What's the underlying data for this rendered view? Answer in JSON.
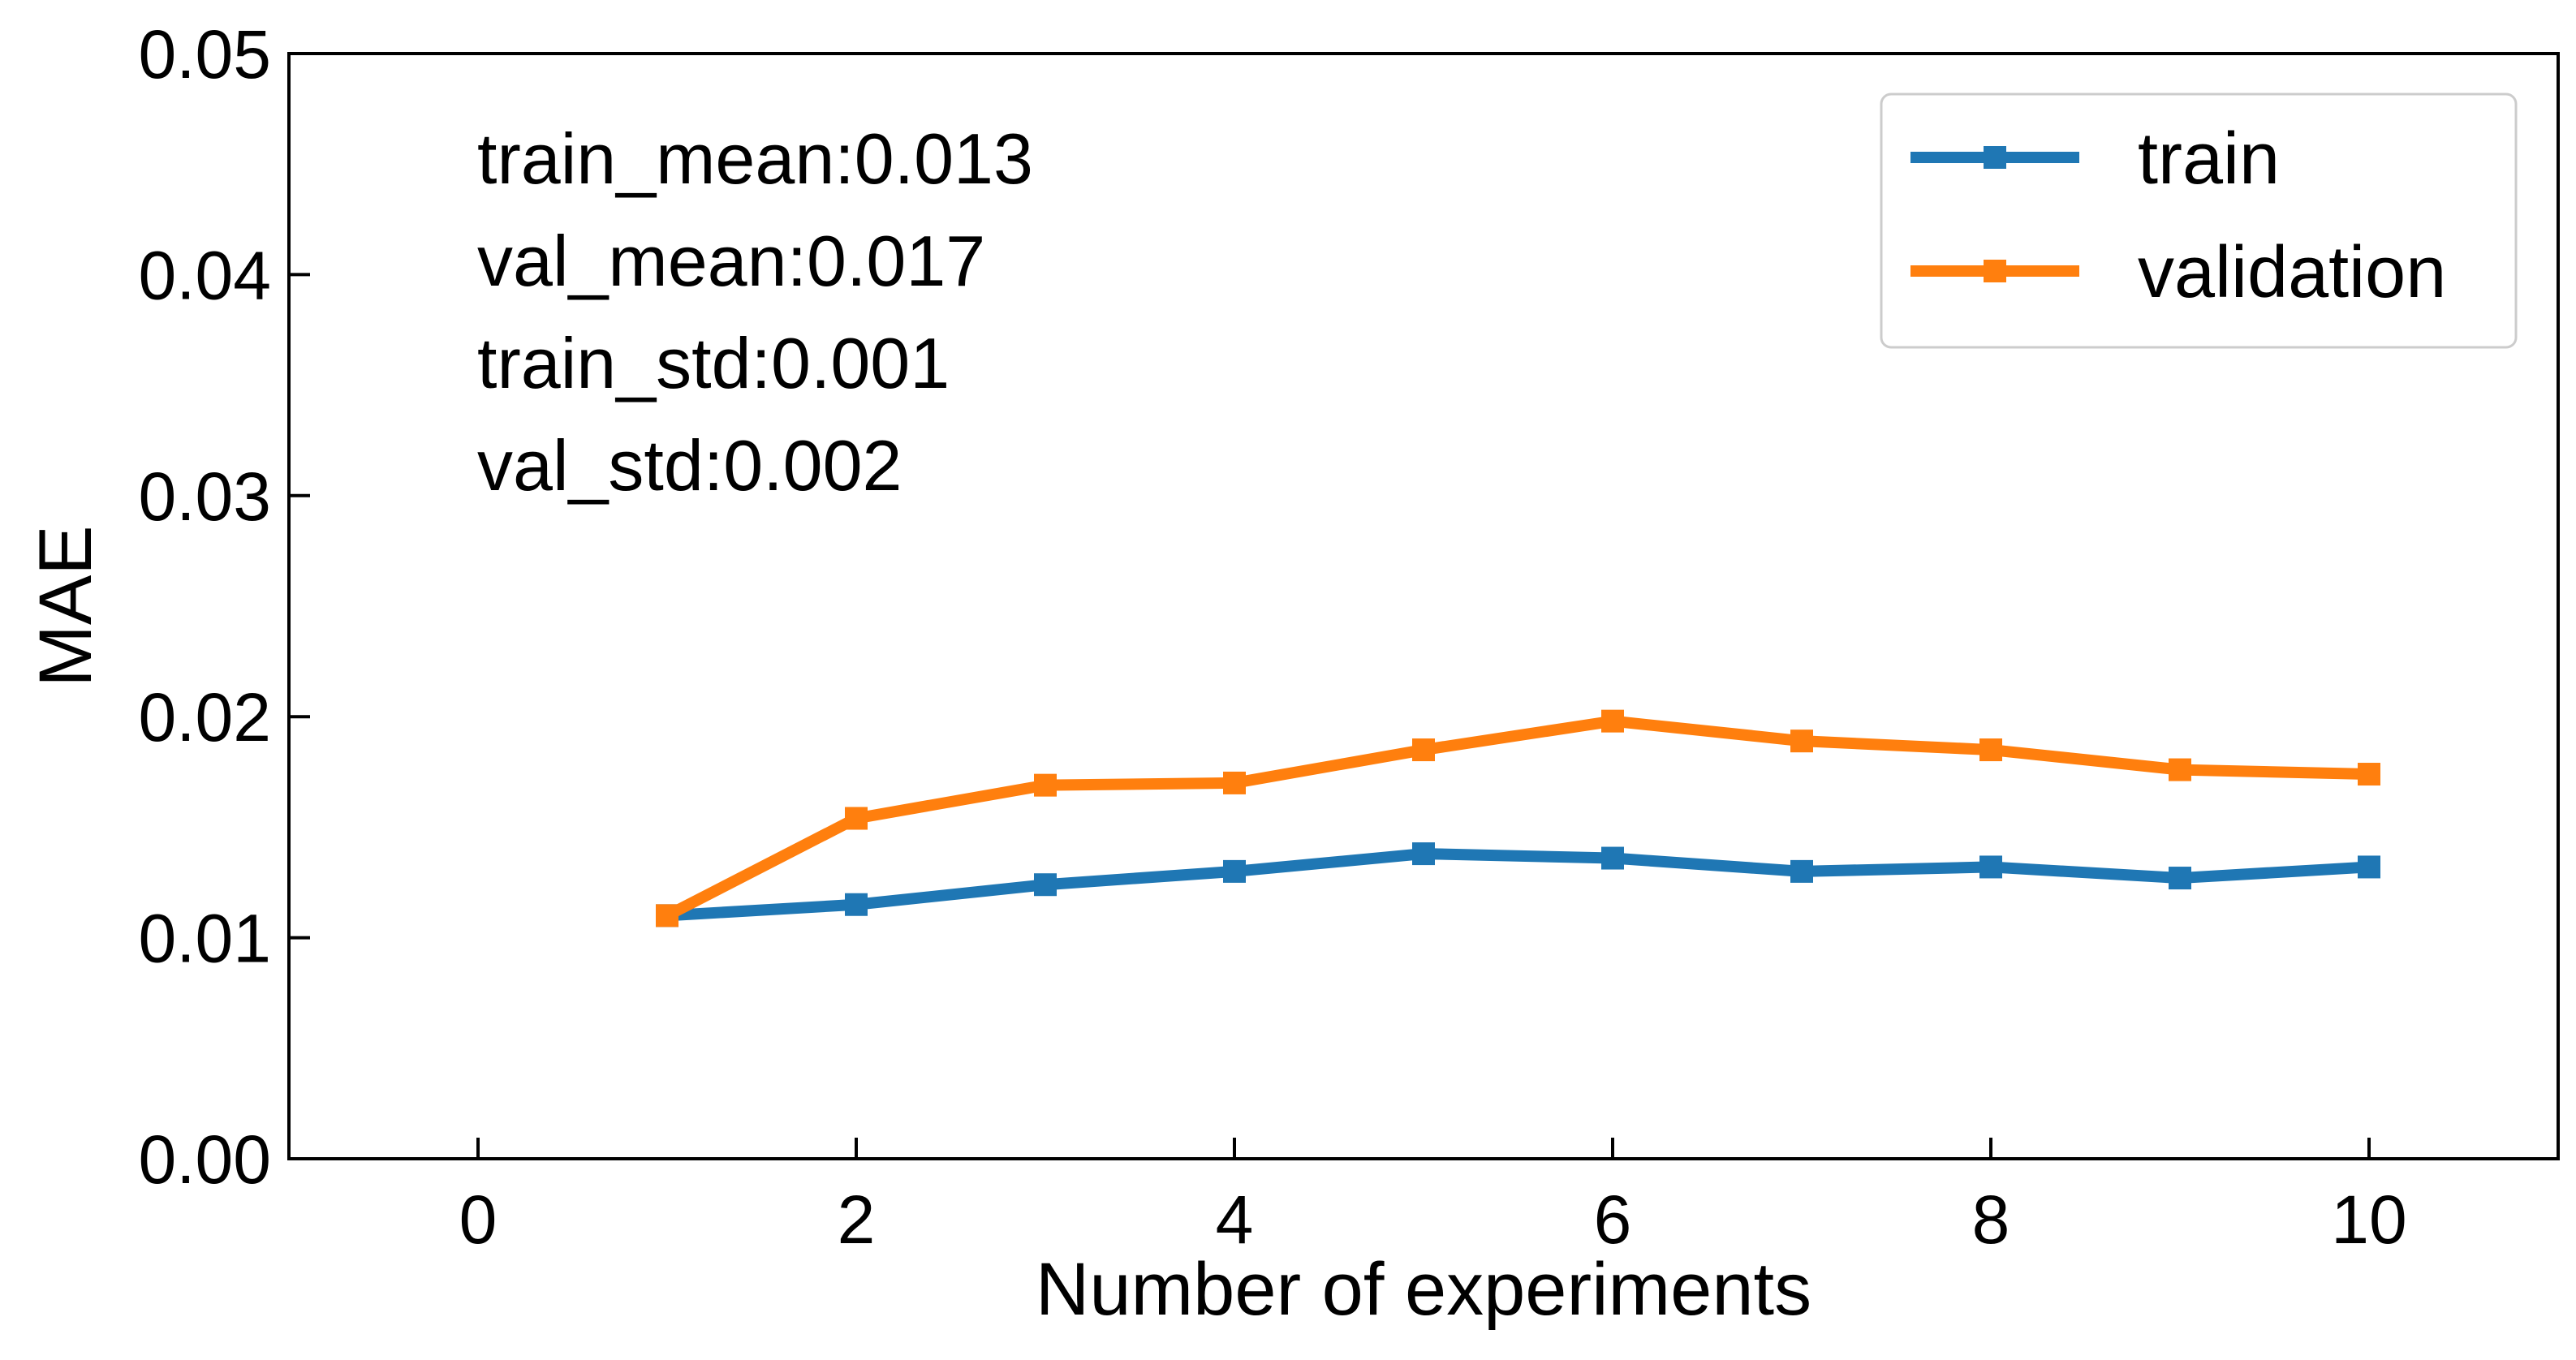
{
  "chart_data": {
    "type": "line",
    "title": "",
    "xlabel": "Number of experiments",
    "ylabel": "MAE",
    "xlim": [
      -1,
      11
    ],
    "ylim": [
      0,
      0.05
    ],
    "xticks": [
      0,
      2,
      4,
      6,
      8,
      10
    ],
    "xtick_labels": [
      "0",
      "2",
      "4",
      "6",
      "8",
      "10"
    ],
    "yticks": [
      0,
      0.01,
      0.02,
      0.03,
      0.04,
      0.05
    ],
    "ytick_labels": [
      "0.00",
      "0.01",
      "0.02",
      "0.03",
      "0.04",
      "0.05"
    ],
    "grid": false,
    "legend_position": "top-right",
    "series": [
      {
        "name": "train",
        "color": "#1f77b4",
        "marker": "square",
        "x": [
          1,
          2,
          3,
          4,
          5,
          6,
          7,
          8,
          9,
          10
        ],
        "values": [
          0.011,
          0.0115,
          0.0124,
          0.013,
          0.0138,
          0.0136,
          0.013,
          0.0132,
          0.0127,
          0.0132
        ]
      },
      {
        "name": "validation",
        "color": "#ff7f0e",
        "marker": "square",
        "x": [
          1,
          2,
          3,
          4,
          5,
          6,
          7,
          8,
          9,
          10
        ],
        "values": [
          0.011,
          0.0154,
          0.0169,
          0.017,
          0.0185,
          0.0198,
          0.0189,
          0.0185,
          0.0176,
          0.0174
        ]
      }
    ],
    "annotations": [
      "train_mean:0.013",
      "val_mean:0.017",
      "train_std:0.001",
      "val_std:0.002"
    ]
  }
}
